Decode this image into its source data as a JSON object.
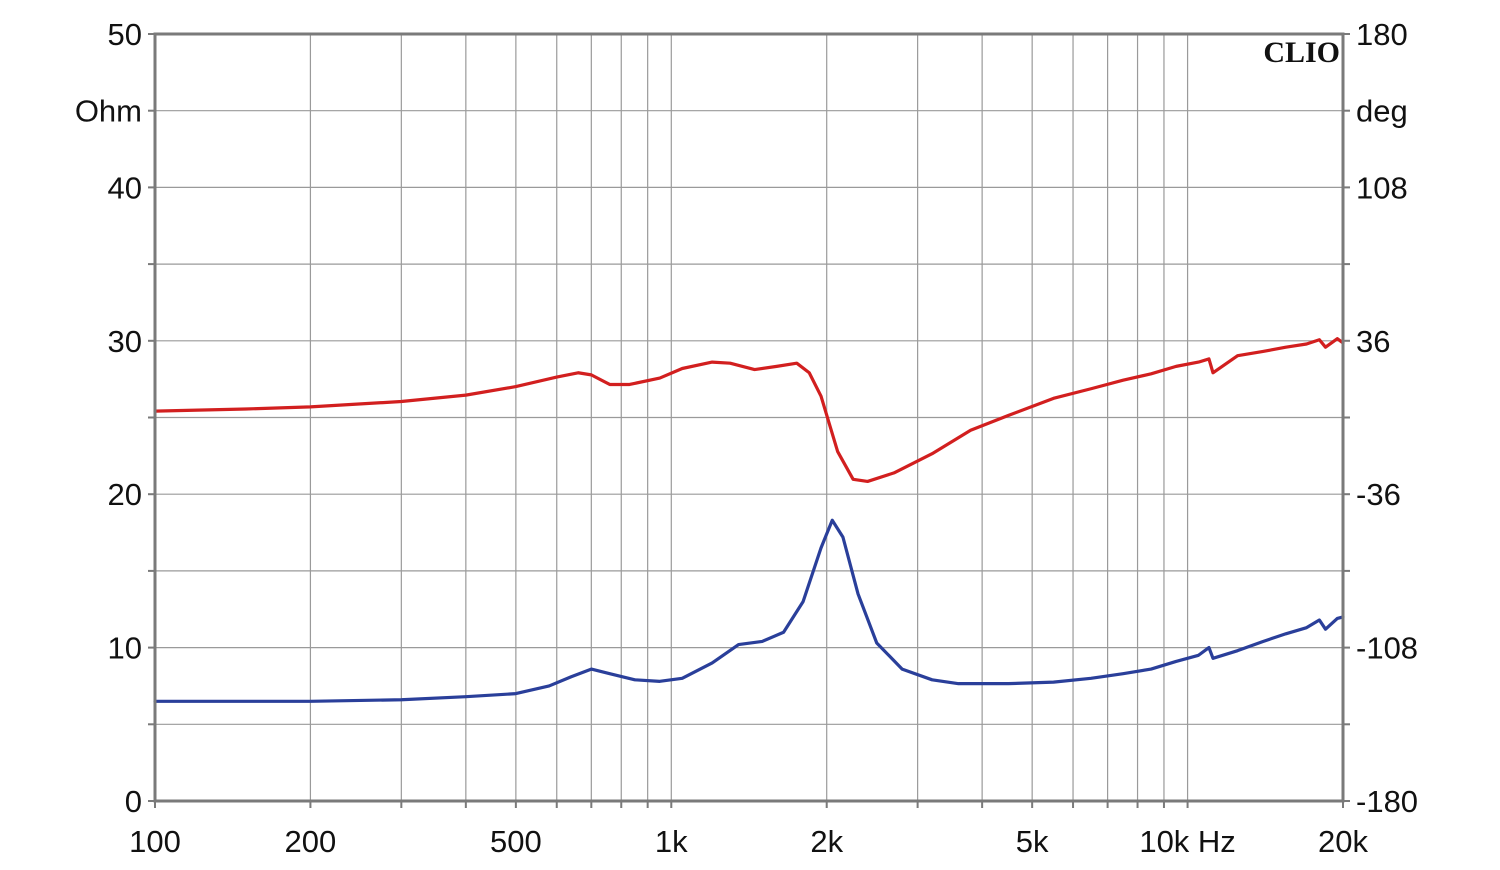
{
  "chart_data": {
    "type": "line",
    "brand": "CLIO",
    "x_scale": "log",
    "xlim": [
      100,
      20000
    ],
    "x_ticks": [
      {
        "value": 100,
        "label": "100"
      },
      {
        "value": 200,
        "label": "200"
      },
      {
        "value": 500,
        "label": "500"
      },
      {
        "value": 1000,
        "label": "1k"
      },
      {
        "value": 2000,
        "label": "2k"
      },
      {
        "value": 5000,
        "label": "5k"
      },
      {
        "value": 10000,
        "label": "10k Hz"
      },
      {
        "value": 20000,
        "label": "20k"
      }
    ],
    "y_left": {
      "unit": "Ohm",
      "lim": [
        0,
        50
      ],
      "ticks": [
        {
          "value": 0,
          "label": "0"
        },
        {
          "value": 10,
          "label": "10"
        },
        {
          "value": 20,
          "label": "20"
        },
        {
          "value": 30,
          "label": "30"
        },
        {
          "value": 40,
          "label": "40"
        },
        {
          "value": 50,
          "label": "50"
        }
      ]
    },
    "y_right": {
      "unit": "deg",
      "lim": [
        -180,
        180
      ],
      "ticks": [
        {
          "value": -180,
          "label": "-180"
        },
        {
          "value": -108,
          "label": "-108"
        },
        {
          "value": -36,
          "label": "-36"
        },
        {
          "value": 36,
          "label": "36"
        },
        {
          "value": 108,
          "label": "108"
        },
        {
          "value": 180,
          "label": "180"
        }
      ]
    },
    "grid": true,
    "series": [
      {
        "axis": "left",
        "color": "#2a3f9a",
        "points": [
          [
            100,
            6.5
          ],
          [
            150,
            6.5
          ],
          [
            200,
            6.5
          ],
          [
            300,
            6.6
          ],
          [
            400,
            6.8
          ],
          [
            500,
            7.0
          ],
          [
            580,
            7.5
          ],
          [
            640,
            8.1
          ],
          [
            700,
            8.6
          ],
          [
            760,
            8.3
          ],
          [
            850,
            7.9
          ],
          [
            950,
            7.8
          ],
          [
            1050,
            8.0
          ],
          [
            1200,
            9.0
          ],
          [
            1350,
            10.2
          ],
          [
            1500,
            10.4
          ],
          [
            1650,
            11.0
          ],
          [
            1800,
            13.0
          ],
          [
            1950,
            16.5
          ],
          [
            2050,
            18.3
          ],
          [
            2150,
            17.2
          ],
          [
            2300,
            13.5
          ],
          [
            2500,
            10.3
          ],
          [
            2800,
            8.6
          ],
          [
            3200,
            7.9
          ],
          [
            3600,
            7.65
          ],
          [
            4500,
            7.65
          ],
          [
            5500,
            7.75
          ],
          [
            6500,
            8.0
          ],
          [
            7500,
            8.3
          ],
          [
            8500,
            8.6
          ],
          [
            9500,
            9.1
          ],
          [
            10500,
            9.5
          ],
          [
            11000,
            10.0
          ],
          [
            11200,
            9.3
          ],
          [
            12500,
            9.8
          ],
          [
            14000,
            10.4
          ],
          [
            15500,
            10.9
          ],
          [
            17000,
            11.3
          ],
          [
            18000,
            11.8
          ],
          [
            18500,
            11.2
          ],
          [
            19500,
            11.9
          ],
          [
            20000,
            12.0
          ]
        ]
      },
      {
        "axis": "right",
        "color": "#d21f1f",
        "points": [
          [
            100,
            3
          ],
          [
            150,
            4
          ],
          [
            200,
            5
          ],
          [
            300,
            7.5
          ],
          [
            400,
            10.5
          ],
          [
            500,
            14.5
          ],
          [
            600,
            19
          ],
          [
            660,
            21
          ],
          [
            700,
            20
          ],
          [
            760,
            15.5
          ],
          [
            830,
            15.5
          ],
          [
            950,
            18.5
          ],
          [
            1050,
            23
          ],
          [
            1200,
            26
          ],
          [
            1300,
            25.5
          ],
          [
            1450,
            22.5
          ],
          [
            1600,
            24
          ],
          [
            1750,
            25.5
          ],
          [
            1850,
            21
          ],
          [
            1950,
            10
          ],
          [
            2100,
            -16
          ],
          [
            2250,
            -29
          ],
          [
            2400,
            -30
          ],
          [
            2700,
            -26
          ],
          [
            3200,
            -17
          ],
          [
            3800,
            -6
          ],
          [
            4500,
            1
          ],
          [
            5500,
            9
          ],
          [
            6500,
            13.5
          ],
          [
            7500,
            17.5
          ],
          [
            8500,
            20.5
          ],
          [
            9500,
            24
          ],
          [
            10500,
            26
          ],
          [
            11000,
            27.5
          ],
          [
            11200,
            21
          ],
          [
            12500,
            29
          ],
          [
            14000,
            31
          ],
          [
            15500,
            33
          ],
          [
            17000,
            34.5
          ],
          [
            18000,
            36.5
          ],
          [
            18500,
            33
          ],
          [
            19500,
            37
          ],
          [
            20000,
            35
          ]
        ]
      }
    ]
  }
}
